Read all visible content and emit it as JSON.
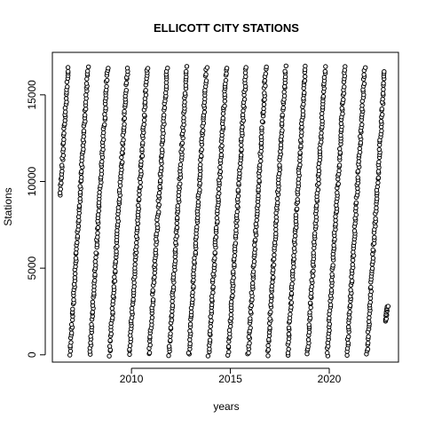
{
  "chart_data": {
    "type": "scatter",
    "title": "ELLICOTT CITY STATIONS",
    "xlabel": "years",
    "ylabel": "Stations",
    "xlim": [
      2006.0,
      2023.5
    ],
    "ylim": [
      -420,
      17450
    ],
    "x_ticks": [
      2010,
      2015,
      2020
    ],
    "y_ticks": [
      0,
      5000,
      10000,
      15000
    ],
    "grid": false,
    "legend": "none",
    "marker": "open-circle",
    "marker_color": "#000000",
    "segments": [
      {
        "x_start": 2006.4,
        "x_end": 2006.8,
        "y_start": 9200,
        "y_end": 16600
      },
      {
        "x_start": 2006.9,
        "x_end": 2007.8,
        "y_start": 0,
        "y_end": 16600
      },
      {
        "x_start": 2007.9,
        "x_end": 2008.8,
        "y_start": 0,
        "y_end": 16600
      },
      {
        "x_start": 2008.9,
        "x_end": 2009.8,
        "y_start": 0,
        "y_end": 16600
      },
      {
        "x_start": 2009.9,
        "x_end": 2010.8,
        "y_start": 0,
        "y_end": 16600
      },
      {
        "x_start": 2010.9,
        "x_end": 2011.8,
        "y_start": 0,
        "y_end": 16600
      },
      {
        "x_start": 2011.9,
        "x_end": 2012.8,
        "y_start": 0,
        "y_end": 16600
      },
      {
        "x_start": 2012.9,
        "x_end": 2013.8,
        "y_start": 0,
        "y_end": 16600
      },
      {
        "x_start": 2013.9,
        "x_end": 2014.8,
        "y_start": 0,
        "y_end": 16600
      },
      {
        "x_start": 2014.9,
        "x_end": 2015.8,
        "y_start": 0,
        "y_end": 16600
      },
      {
        "x_start": 2015.9,
        "x_end": 2016.8,
        "y_start": 0,
        "y_end": 16600
      },
      {
        "x_start": 2016.9,
        "x_end": 2017.8,
        "y_start": 0,
        "y_end": 16600
      },
      {
        "x_start": 2017.9,
        "x_end": 2018.8,
        "y_start": 0,
        "y_end": 16600
      },
      {
        "x_start": 2018.9,
        "x_end": 2019.8,
        "y_start": 0,
        "y_end": 16600
      },
      {
        "x_start": 2019.9,
        "x_end": 2020.8,
        "y_start": 0,
        "y_end": 16600
      },
      {
        "x_start": 2020.9,
        "x_end": 2021.8,
        "y_start": 0,
        "y_end": 16600
      },
      {
        "x_start": 2021.9,
        "x_end": 2022.8,
        "y_start": 0,
        "y_end": 16400
      },
      {
        "x_start": 2022.85,
        "x_end": 2022.95,
        "y_start": 1900,
        "y_end": 2800
      }
    ]
  }
}
